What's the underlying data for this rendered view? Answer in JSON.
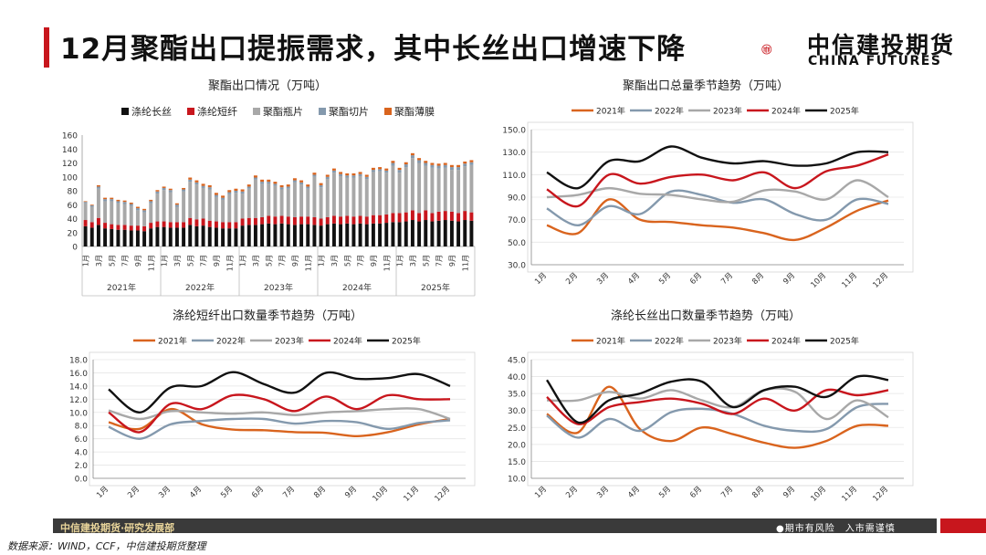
{
  "header": {
    "title": "12月聚酯出口提振需求，其中长丝出口增速下降",
    "logo_cn": "中信建投期货",
    "logo_en": "CHINA FUTURES"
  },
  "footer": {
    "left": "中信建投期货·研究发展部",
    "right": "●期市有风险　入市需谨慎",
    "source": "数据来源：WIND，CCF，中信建投期货整理"
  },
  "colors": {
    "y2021": "#d9641e",
    "y2022": "#8499ad",
    "y2023": "#a8a8a8",
    "y2024": "#c8161d",
    "y2025": "#111111",
    "brand_red": "#c8161d"
  },
  "chart_data": [
    {
      "id": "c1",
      "type": "bar",
      "stacked": true,
      "title": "聚酯出口情况（万吨）",
      "legend_position": "top",
      "ylim": [
        0,
        160
      ],
      "yticks": [
        0,
        20,
        40,
        60,
        80,
        100,
        120,
        140,
        160
      ],
      "year_groups": [
        "2021年",
        "2022年",
        "2023年",
        "2024年",
        "2025年"
      ],
      "month_tick_labels": [
        "1月",
        "3月",
        "5月",
        "7月",
        "9月",
        "11月"
      ],
      "series": [
        {
          "name": "涤纶长丝",
          "color": "#111111",
          "values": [
            29,
            27,
            31,
            26,
            25,
            24,
            24,
            23,
            23,
            22,
            26,
            28,
            28,
            27,
            27,
            27,
            31,
            29,
            30,
            28,
            27,
            26,
            26,
            26,
            30,
            31,
            31,
            32,
            33,
            32,
            33,
            32,
            31,
            32,
            32,
            31,
            30,
            32,
            33,
            32,
            33,
            32,
            33,
            32,
            33,
            33,
            34,
            35,
            35,
            36,
            38,
            36,
            38,
            36,
            37,
            38,
            37,
            36,
            38,
            37
          ]
        },
        {
          "name": "涤纶短纤",
          "color": "#c8161d",
          "values": [
            9,
            8,
            10,
            8,
            7,
            7,
            7,
            7,
            7,
            7,
            8,
            8,
            8,
            8,
            8,
            8,
            10,
            10,
            10,
            9,
            9,
            9,
            9,
            9,
            10,
            10,
            10,
            10,
            11,
            11,
            11,
            11,
            11,
            11,
            11,
            11,
            10,
            10,
            11,
            11,
            11,
            11,
            11,
            11,
            12,
            12,
            12,
            13,
            13,
            13,
            14,
            12,
            14,
            12,
            13,
            13,
            13,
            12,
            13,
            12
          ]
        },
        {
          "name": "聚酯瓶片",
          "color": "#a8a8a8",
          "values": [
            24,
            22,
            42,
            31,
            33,
            31,
            30,
            28,
            22,
            20,
            28,
            40,
            45,
            43,
            22,
            44,
            52,
            50,
            44,
            45,
            35,
            32,
            40,
            42,
            36,
            42,
            55,
            48,
            46,
            44,
            38,
            40,
            50,
            46,
            40,
            58,
            45,
            55,
            62,
            58,
            55,
            56,
            57,
            54,
            62,
            63,
            60,
            68,
            58,
            65,
            75,
            72,
            64,
            65,
            62,
            62,
            60,
            62,
            64,
            68
          ]
        },
        {
          "name": "聚酯切片",
          "color": "#8499ad",
          "values": [
            2,
            2,
            3,
            3,
            3,
            3,
            3,
            3,
            3,
            3,
            3,
            3,
            3,
            3,
            3,
            3,
            3,
            3,
            3,
            3,
            3,
            3,
            3,
            3,
            3,
            3,
            3,
            3,
            3,
            3,
            3,
            3,
            3,
            3,
            3,
            3,
            3,
            3,
            3,
            3,
            3,
            3,
            3,
            3,
            3,
            3,
            3,
            4,
            4,
            4,
            4,
            4,
            4,
            4,
            4,
            4,
            4,
            4,
            4,
            4
          ]
        },
        {
          "name": "聚酯薄膜",
          "color": "#d9641e",
          "values": [
            1,
            1,
            2,
            2,
            2,
            2,
            2,
            2,
            2,
            2,
            2,
            2,
            2,
            2,
            2,
            2,
            3,
            3,
            3,
            3,
            3,
            3,
            3,
            3,
            3,
            3,
            3,
            3,
            3,
            3,
            3,
            3,
            3,
            3,
            3,
            3,
            3,
            3,
            3,
            3,
            3,
            3,
            3,
            3,
            3,
            3,
            3,
            3,
            3,
            3,
            3,
            3,
            3,
            3,
            3,
            3,
            3,
            3,
            3,
            3
          ]
        }
      ]
    },
    {
      "id": "c2",
      "type": "line",
      "title": "聚酯出口总量季节趋势（万吨）",
      "legend_position": "top",
      "ylim": [
        30,
        150
      ],
      "yticks": [
        "30.0",
        "50.0",
        "70.0",
        "90.0",
        "110.0",
        "130.0",
        "150.0"
      ],
      "categories": [
        "1月",
        "2月",
        "3月",
        "4月",
        "5月",
        "6月",
        "7月",
        "8月",
        "9月",
        "10月",
        "11月",
        "12月"
      ],
      "series": [
        {
          "name": "2021年",
          "color": "#d9641e",
          "values": [
            65,
            58,
            88,
            70,
            68,
            65,
            63,
            58,
            52,
            63,
            78,
            87
          ]
        },
        {
          "name": "2022年",
          "color": "#8499ad",
          "values": [
            80,
            65,
            82,
            75,
            95,
            92,
            85,
            88,
            75,
            70,
            88,
            84
          ]
        },
        {
          "name": "2023年",
          "color": "#a8a8a8",
          "values": [
            90,
            92,
            98,
            93,
            92,
            88,
            86,
            96,
            95,
            88,
            105,
            90
          ]
        },
        {
          "name": "2024年",
          "color": "#c8161d",
          "values": [
            97,
            82,
            110,
            102,
            108,
            110,
            105,
            112,
            98,
            113,
            118,
            128
          ]
        },
        {
          "name": "2025年",
          "color": "#111111",
          "values": [
            112,
            98,
            122,
            122,
            135,
            125,
            120,
            122,
            118,
            120,
            130,
            130
          ]
        }
      ]
    },
    {
      "id": "c3",
      "type": "line",
      "title": "涤纶短纤出口数量季节趋势（万吨）",
      "legend_position": "top",
      "ylim": [
        0,
        18
      ],
      "yticks": [
        "0.0",
        "2.0",
        "4.0",
        "6.0",
        "8.0",
        "10.0",
        "12.0",
        "14.0",
        "16.0",
        "18.0"
      ],
      "categories": [
        "1月",
        "2月",
        "3月",
        "4月",
        "5月",
        "6月",
        "7月",
        "8月",
        "9月",
        "10月",
        "11月",
        "12月"
      ],
      "series": [
        {
          "name": "2021年",
          "color": "#d9641e",
          "values": [
            8.5,
            7.5,
            10.5,
            8.2,
            7.4,
            7.3,
            7.0,
            6.9,
            6.4,
            7.0,
            8.2,
            9.0
          ]
        },
        {
          "name": "2022年",
          "color": "#8499ad",
          "values": [
            7.8,
            6.0,
            8.2,
            8.7,
            9.0,
            9.0,
            8.3,
            8.7,
            8.5,
            7.5,
            8.4,
            8.8
          ]
        },
        {
          "name": "2023年",
          "color": "#a8a8a8",
          "values": [
            10.3,
            9.0,
            10.2,
            10.0,
            9.8,
            10.0,
            9.6,
            10.0,
            10.2,
            10.5,
            10.5,
            9.0
          ]
        },
        {
          "name": "2024年",
          "color": "#c8161d",
          "values": [
            10.0,
            7.0,
            11.3,
            10.5,
            12.6,
            12.0,
            10.2,
            12.4,
            10.5,
            12.6,
            12.0,
            12.0
          ]
        },
        {
          "name": "2025年",
          "color": "#111111",
          "values": [
            13.5,
            10.0,
            13.8,
            14.0,
            16.1,
            14.3,
            13.0,
            16.0,
            15.1,
            15.2,
            15.8,
            14.0
          ]
        }
      ]
    },
    {
      "id": "c4",
      "type": "line",
      "title": "涤纶长丝出口数量季节趋势（万吨）",
      "legend_position": "top",
      "ylim": [
        10,
        45
      ],
      "yticks": [
        "10.0",
        "15.0",
        "20.0",
        "25.0",
        "30.0",
        "35.0",
        "40.0",
        "45.0"
      ],
      "categories": [
        "1月",
        "2月",
        "3月",
        "4月",
        "5月",
        "6月",
        "7月",
        "8月",
        "9月",
        "10月",
        "11月",
        "12月"
      ],
      "series": [
        {
          "name": "2021年",
          "color": "#d9641e",
          "values": [
            29,
            23.5,
            37,
            24.5,
            21,
            25,
            23,
            20.5,
            19,
            21,
            25.5,
            25.5
          ]
        },
        {
          "name": "2022年",
          "color": "#8499ad",
          "values": [
            28.5,
            22,
            27.5,
            24,
            29.5,
            30.5,
            29,
            25.5,
            24,
            24.5,
            31,
            32
          ]
        },
        {
          "name": "2023年",
          "color": "#a8a8a8",
          "values": [
            33,
            33,
            35.5,
            33.5,
            36,
            33,
            31,
            36,
            35.5,
            27.5,
            33,
            28
          ]
        },
        {
          "name": "2024年",
          "color": "#c8161d",
          "values": [
            34,
            26,
            31,
            32.5,
            33.5,
            32,
            29,
            33.5,
            30,
            36,
            34.5,
            36
          ]
        },
        {
          "name": "2025年",
          "color": "#111111",
          "values": [
            39,
            26.5,
            33,
            35,
            38.5,
            38.5,
            31,
            36,
            37,
            34,
            40,
            39
          ]
        }
      ]
    }
  ]
}
